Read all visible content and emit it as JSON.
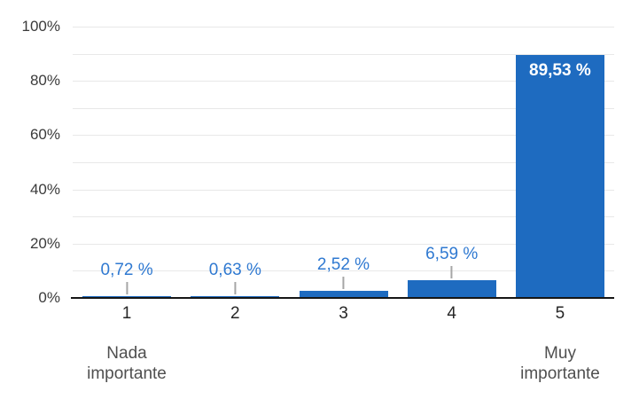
{
  "chart_data": {
    "type": "bar",
    "title": "",
    "xlabel": "",
    "ylabel": "",
    "categories": [
      "1",
      "2",
      "3",
      "4",
      "5"
    ],
    "values": [
      0.72,
      0.63,
      2.52,
      6.59,
      89.53
    ],
    "value_labels": [
      "0,72 %",
      "0,63 %",
      "2,52 %",
      "6,59 %",
      "89,53 %"
    ],
    "label_inside": [
      false,
      false,
      false,
      false,
      true
    ],
    "ylim": [
      0,
      100
    ],
    "grid": true,
    "grid_step": 10,
    "legend": "none",
    "yticks": [
      {
        "value": 0,
        "label": "0%"
      },
      {
        "value": 20,
        "label": "20%"
      },
      {
        "value": 40,
        "label": "40%"
      },
      {
        "value": 60,
        "label": "60%"
      },
      {
        "value": 80,
        "label": "80%"
      },
      {
        "value": 100,
        "label": "100%"
      }
    ],
    "caption_left": "Nada importante",
    "caption_right": "Muy importante",
    "colors": {
      "bar": "#1E6BC0",
      "value_label": "#2F79D1",
      "value_label_inside": "#FFFFFF",
      "gridline": "#E8E8E8",
      "axis_line": "#161616",
      "leader_line": "#A6A6A6",
      "tick_text": "#3B3B3B",
      "category_text": "#262626",
      "caption_text": "#4F4F4F"
    }
  }
}
